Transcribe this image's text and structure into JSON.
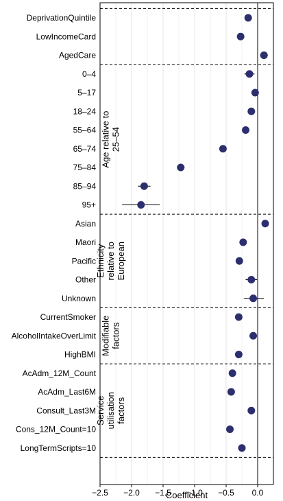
{
  "chart_data": {
    "type": "scatter",
    "subtype": "coefficient-dot-plot",
    "xlabel": "Coefficient",
    "xlim": [
      -2.5,
      0.25
    ],
    "x_ticks": [
      -2.5,
      -2.0,
      -1.5,
      -1.0,
      -0.5,
      0.0
    ],
    "x_tick_labels": [
      "−2.5",
      "−2.0",
      "−1.5",
      "−1.0",
      "−0.5",
      "0.0"
    ],
    "reference_line_x": 0,
    "grid": true,
    "point_color": "#2b2f6e",
    "groups": [
      {
        "title_lines": [],
        "items": [
          {
            "label": "DeprivationQuintile",
            "value": -0.15,
            "ci": [
              -0.19,
              -0.11
            ]
          },
          {
            "label": "LowIncomeCard",
            "value": -0.27,
            "ci": [
              -0.31,
              -0.23
            ]
          },
          {
            "label": "AgedCare",
            "value": 0.1,
            "ci": [
              0.04,
              0.16
            ]
          }
        ]
      },
      {
        "title_lines": [
          "Age relative to",
          "25–54"
        ],
        "items": [
          {
            "label": "0–4",
            "value": -0.13,
            "ci": [
              -0.21,
              -0.05
            ]
          },
          {
            "label": "5–17",
            "value": -0.04,
            "ci": [
              -0.09,
              0.01
            ]
          },
          {
            "label": "18–24",
            "value": -0.1,
            "ci": [
              -0.15,
              -0.05
            ]
          },
          {
            "label": "55–64",
            "value": -0.19,
            "ci": [
              -0.23,
              -0.15
            ]
          },
          {
            "label": "65–74",
            "value": -0.55,
            "ci": [
              -0.59,
              -0.51
            ]
          },
          {
            "label": "75–84",
            "value": -1.22,
            "ci": [
              -1.28,
              -1.16
            ]
          },
          {
            "label": "85–94",
            "value": -1.8,
            "ci": [
              -1.9,
              -1.7
            ]
          },
          {
            "label": "95+",
            "value": -1.85,
            "ci": [
              -2.15,
              -1.55
            ]
          }
        ]
      },
      {
        "title_lines": [
          "Ethnicity",
          "relative to",
          "European"
        ],
        "items": [
          {
            "label": "Asian",
            "value": 0.12,
            "ci": [
              0.08,
              0.16
            ]
          },
          {
            "label": "Maori",
            "value": -0.23,
            "ci": [
              -0.28,
              -0.18
            ]
          },
          {
            "label": "Pacific",
            "value": -0.29,
            "ci": [
              -0.34,
              -0.24
            ]
          },
          {
            "label": "Other",
            "value": -0.1,
            "ci": [
              -0.19,
              -0.01
            ]
          },
          {
            "label": "Unknown",
            "value": -0.07,
            "ci": [
              -0.22,
              0.1
            ]
          }
        ]
      },
      {
        "title_lines": [
          "Modifiable",
          "factors"
        ],
        "items": [
          {
            "label": "CurrentSmoker",
            "value": -0.3,
            "ci": [
              -0.34,
              -0.26
            ]
          },
          {
            "label": "AlcoholIntakeOverLimit",
            "value": -0.07,
            "ci": [
              -0.11,
              -0.03
            ]
          },
          {
            "label": "HighBMI",
            "value": -0.3,
            "ci": [
              -0.35,
              -0.25
            ]
          }
        ]
      },
      {
        "title_lines": [
          "Service",
          "utilisation",
          "factors"
        ],
        "items": [
          {
            "label": "AcAdm_12M_Count",
            "value": -0.4,
            "ci": [
              -0.44,
              -0.36
            ]
          },
          {
            "label": "AcAdm_Last6M",
            "value": -0.42,
            "ci": [
              -0.46,
              -0.38
            ]
          },
          {
            "label": "Consult_Last3M",
            "value": -0.1,
            "ci": [
              -0.13,
              -0.07
            ]
          },
          {
            "label": "Cons_12M_Count=10",
            "value": -0.44,
            "ci": [
              -0.48,
              -0.4
            ]
          },
          {
            "label": "LongTermScripts=10",
            "value": -0.25,
            "ci": [
              -0.31,
              -0.19
            ]
          }
        ]
      }
    ]
  }
}
